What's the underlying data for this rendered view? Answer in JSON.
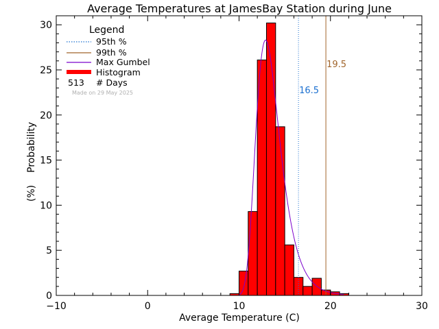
{
  "chart_data": {
    "type": "bar",
    "title": "Average Temperatures at JamesBay Station during June",
    "xlabel": "Average Temperature (C)",
    "ylabel_top": "Probability",
    "ylabel_bottom": "(%)",
    "xlim": [
      -10,
      30
    ],
    "ylim": [
      0,
      31
    ],
    "xticks": [
      -10,
      0,
      10,
      20,
      30
    ],
    "yticks": [
      0,
      5,
      10,
      15,
      20,
      25,
      30
    ],
    "bin_width": 1,
    "bins": [
      {
        "x0": 9,
        "value": 0.2
      },
      {
        "x0": 10,
        "value": 2.7
      },
      {
        "x0": 11,
        "value": 9.3
      },
      {
        "x0": 12,
        "value": 26.1
      },
      {
        "x0": 13,
        "value": 30.2
      },
      {
        "x0": 14,
        "value": 18.7
      },
      {
        "x0": 15,
        "value": 5.6
      },
      {
        "x0": 16,
        "value": 2.0
      },
      {
        "x0": 17,
        "value": 1.0
      },
      {
        "x0": 18,
        "value": 1.9
      },
      {
        "x0": 19,
        "value": 0.6
      },
      {
        "x0": 20,
        "value": 0.4
      },
      {
        "x0": 21,
        "value": 0.2
      }
    ],
    "gumbel": {
      "mu": 12.9,
      "beta": 1.3
    },
    "percentiles": [
      {
        "key": "p95",
        "value": 16.5,
        "label": "16.5",
        "color": "#1a6fd0",
        "label_y": 22.8
      },
      {
        "key": "p99",
        "value": 19.5,
        "label": "19.5",
        "color": "#a0642a",
        "label_y": 25.7
      }
    ],
    "colors": {
      "histogram": "#ff0000",
      "gumbel": "#7a00cc",
      "p95": "#1a6fd0",
      "p99": "#a0642a"
    },
    "legend": {
      "title": "Legend",
      "items": [
        {
          "label": "95th %",
          "style": "dotted",
          "color": "#1a6fd0"
        },
        {
          "label": "99th %",
          "style": "solid",
          "color": "#a0642a"
        },
        {
          "label": "Max Gumbel",
          "style": "solid",
          "color": "#7a00cc"
        },
        {
          "label": "Histogram",
          "style": "thick",
          "color": "#ff0000"
        }
      ],
      "days_count": "513",
      "days_label": "# Days",
      "made_note": "Made on 29 May 2025"
    }
  }
}
